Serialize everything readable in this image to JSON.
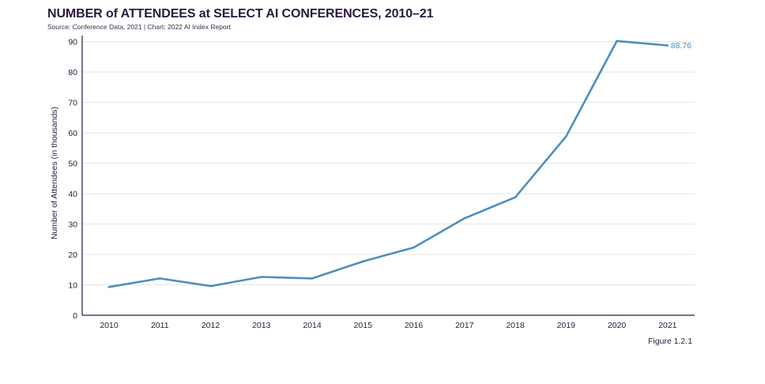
{
  "colors": {
    "series": "#4c8fbf",
    "axis": "#2a1a3e",
    "grid": "#e4e4e4"
  },
  "chart_data": {
    "type": "line",
    "title": "NUMBER of ATTENDEES at SELECT AI CONFERENCES, 2010–21",
    "subtitle": "Source: Conference Data, 2021 | Chart: 2022 AI Index Report",
    "xlabel": "",
    "ylabel": "Number of Attendees (in thousands)",
    "ylim": [
      0,
      92
    ],
    "yticks": [
      "0",
      "10",
      "20",
      "30",
      "40",
      "50",
      "60",
      "70",
      "80",
      "90"
    ],
    "categories": [
      "2010",
      "2011",
      "2012",
      "2013",
      "2014",
      "2015",
      "2016",
      "2017",
      "2018",
      "2019",
      "2020",
      "2021"
    ],
    "series": [
      {
        "values": [
          9.3,
          12.1,
          9.6,
          12.6,
          12.1,
          17.7,
          22.3,
          31.9,
          38.8,
          58.8,
          90.2,
          88.76
        ]
      }
    ],
    "annotations": [
      {
        "category": "2021",
        "text": "88.76"
      }
    ],
    "grid": true,
    "footer": "Figure 1.2.1"
  }
}
